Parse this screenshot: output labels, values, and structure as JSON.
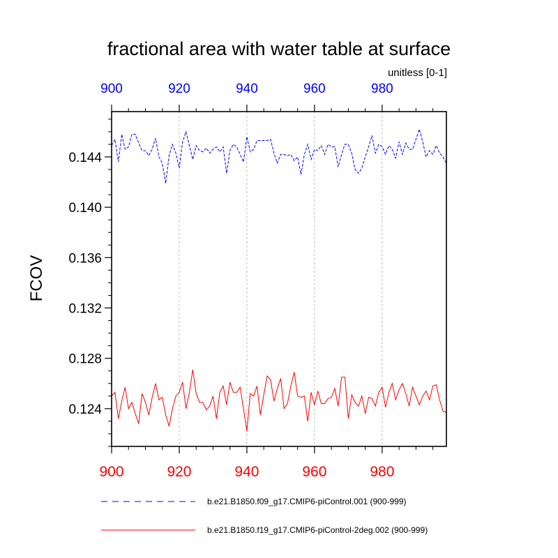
{
  "chart_data": {
    "type": "line",
    "title": "fractional area with water table at surface",
    "units": "unitless [0-1]",
    "ylabel": "FCOV",
    "xlabel": "",
    "xlim": [
      900,
      999
    ],
    "ylim": [
      0.121,
      0.1476
    ],
    "yticks": [
      "0.124",
      "0.128",
      "0.132",
      "0.136",
      "0.140",
      "0.144"
    ],
    "xticks": [
      "900",
      "920",
      "940",
      "960",
      "980"
    ],
    "top_axis_color": "#0000ff",
    "bottom_axis_color": "#ff0000",
    "series": [
      {
        "name": "b.e21.B1850.f09_g17.CMIP6-piControl.001 (900-999)",
        "color": "#0000ff",
        "style": "dashed",
        "x_start": 900,
        "values": [
          0.1449,
          0.1454,
          0.1436,
          0.1458,
          0.1446,
          0.1448,
          0.1458,
          0.1458,
          0.1451,
          0.1445,
          0.1445,
          0.1441,
          0.1446,
          0.1455,
          0.144,
          0.1435,
          0.1419,
          0.1441,
          0.145,
          0.1443,
          0.1431,
          0.1452,
          0.146,
          0.1449,
          0.1438,
          0.1449,
          0.1445,
          0.1444,
          0.1447,
          0.1443,
          0.1446,
          0.1448,
          0.1444,
          0.1448,
          0.1427,
          0.1445,
          0.145,
          0.1448,
          0.1442,
          0.1436,
          0.1456,
          0.1444,
          0.1446,
          0.1453,
          0.1453,
          0.1453,
          0.1453,
          0.1454,
          0.1443,
          0.1435,
          0.1442,
          0.1442,
          0.1441,
          0.1442,
          0.1437,
          0.144,
          0.1426,
          0.1442,
          0.145,
          0.1438,
          0.1446,
          0.1445,
          0.1449,
          0.1442,
          0.145,
          0.1448,
          0.1448,
          0.1432,
          0.1442,
          0.145,
          0.145,
          0.1443,
          0.143,
          0.1427,
          0.1431,
          0.144,
          0.1448,
          0.1457,
          0.1443,
          0.145,
          0.1448,
          0.1442,
          0.1449,
          0.1446,
          0.1439,
          0.1452,
          0.1442,
          0.1451,
          0.1446,
          0.1446,
          0.1454,
          0.1462,
          0.1452,
          0.144,
          0.1445,
          0.1442,
          0.1449,
          0.1443,
          0.144,
          0.1435
        ]
      },
      {
        "name": "b.e21.B1850.f19_g17.CMIP6-piControl-2deg.002 (900-999)",
        "color": "#ff0000",
        "style": "solid",
        "x_start": 900,
        "values": [
          0.125,
          0.1253,
          0.1232,
          0.1246,
          0.1257,
          0.124,
          0.1245,
          0.1236,
          0.1228,
          0.1252,
          0.1245,
          0.1235,
          0.1249,
          0.126,
          0.1247,
          0.1249,
          0.1235,
          0.1226,
          0.124,
          0.125,
          0.1253,
          0.1261,
          0.124,
          0.1253,
          0.1271,
          0.1252,
          0.1245,
          0.1245,
          0.1239,
          0.1242,
          0.125,
          0.1232,
          0.1253,
          0.1258,
          0.1243,
          0.1261,
          0.1253,
          0.1253,
          0.1257,
          0.124,
          0.1222,
          0.1252,
          0.125,
          0.1258,
          0.1235,
          0.1251,
          0.1266,
          0.1263,
          0.1246,
          0.1256,
          0.1264,
          0.124,
          0.1244,
          0.1258,
          0.1269,
          0.125,
          0.1249,
          0.125,
          0.123,
          0.1253,
          0.1243,
          0.1254,
          0.1244,
          0.1244,
          0.1248,
          0.1249,
          0.1256,
          0.1242,
          0.1265,
          0.1265,
          0.1232,
          0.1251,
          0.1245,
          0.1242,
          0.125,
          0.1236,
          0.1249,
          0.1248,
          0.1242,
          0.1253,
          0.1257,
          0.1241,
          0.1253,
          0.126,
          0.1247,
          0.1255,
          0.126,
          0.1252,
          0.1242,
          0.1257,
          0.125,
          0.1243,
          0.125,
          0.1254,
          0.1247,
          0.1258,
          0.1259,
          0.1247,
          0.1238,
          0.1237
        ]
      }
    ]
  }
}
